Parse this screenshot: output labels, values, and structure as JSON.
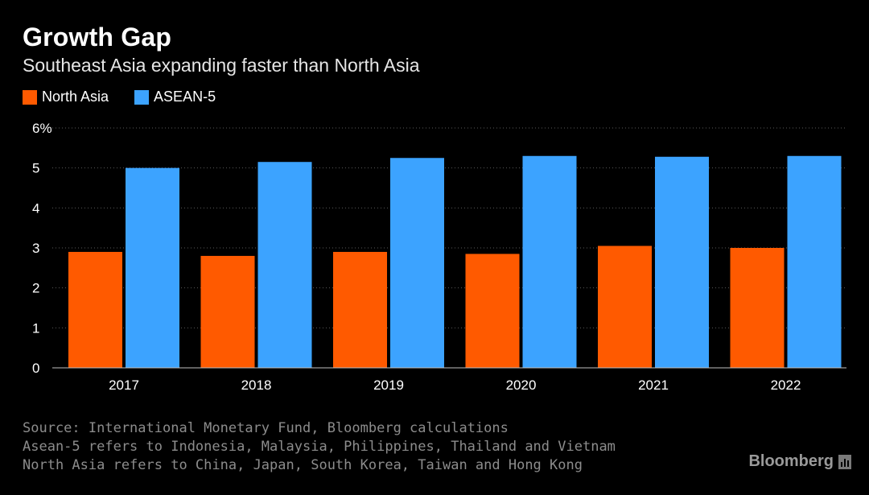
{
  "header": {
    "title": "Growth Gap",
    "subtitle": "Southeast Asia expanding faster than North Asia"
  },
  "legend": {
    "items": [
      {
        "label": "North Asia",
        "color": "#ff5a00"
      },
      {
        "label": "ASEAN-5",
        "color": "#3ca3ff"
      }
    ]
  },
  "footer": {
    "source": "Source: International Monetary Fund, Bloomberg calculations",
    "note_asean": "Asean-5 refers to Indonesia, Malaysia, Philippines, Thailand and Vietnam",
    "note_north": "North Asia refers to China, Japan, South Korea, Taiwan and Hong Kong",
    "brand": "Bloomberg",
    "brand_icon": "bloomberg-chart-icon"
  },
  "chart_data": {
    "type": "bar",
    "categories": [
      "2017",
      "2018",
      "2019",
      "2020",
      "2021",
      "2022"
    ],
    "series": [
      {
        "name": "North Asia",
        "color": "#ff5a00",
        "values": [
          2.9,
          2.8,
          2.9,
          2.85,
          3.05,
          3.0
        ]
      },
      {
        "name": "ASEAN-5",
        "color": "#3ca3ff",
        "values": [
          5.0,
          5.15,
          5.25,
          5.3,
          5.28,
          5.3
        ]
      }
    ],
    "ylim": [
      0,
      6
    ],
    "yticks": [
      {
        "value": 0,
        "label": "0"
      },
      {
        "value": 1,
        "label": "1"
      },
      {
        "value": 2,
        "label": "2"
      },
      {
        "value": 3,
        "label": "3"
      },
      {
        "value": 4,
        "label": "4"
      },
      {
        "value": 5,
        "label": "5"
      },
      {
        "value": 6,
        "label": "6%"
      }
    ],
    "grid": true,
    "legend_position": "top-left"
  }
}
